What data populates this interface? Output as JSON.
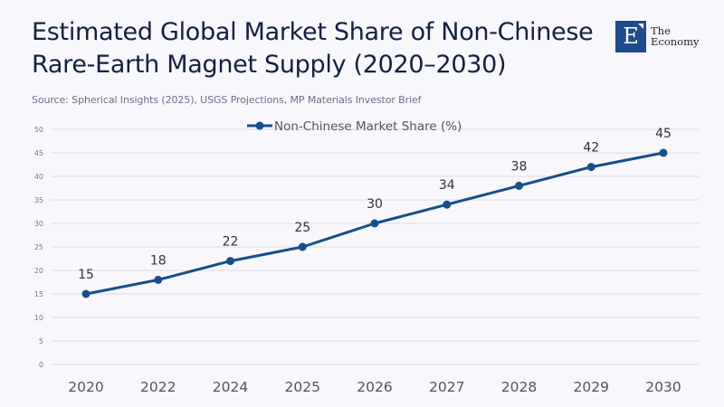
{
  "header": {
    "title_line1": "Estimated Global Market Share of Non-Chinese",
    "title_line2": "Rare-Earth Magnet Supply (2020–2030)",
    "subtitle": "Source: Spherical Insights (2025), USGS Projections, MP Materials Investor Brief"
  },
  "logo": {
    "icon": "E",
    "line1": "The",
    "line2": "Economy",
    "color": "#1d4b8c"
  },
  "chart_data": {
    "type": "line",
    "title": "Estimated Global Market Share of Non-Chinese Rare-Earth Magnet Supply (2020–2030)",
    "subtitle": "Source: Spherical Insights (2025), USGS Projections, MP Materials Investor Brief",
    "categories": [
      "2020",
      "2022",
      "2024",
      "2025",
      "2026",
      "2027",
      "2028",
      "2029",
      "2030"
    ],
    "series": [
      {
        "name": "Non-Chinese Market Share (%)",
        "values": [
          15,
          18,
          22,
          25,
          30,
          34,
          38,
          42,
          45
        ],
        "color": "#174f8a"
      }
    ],
    "xlabel": "",
    "ylabel": "",
    "ylim": [
      0,
      50
    ],
    "yticks": [
      0,
      5,
      10,
      15,
      20,
      25,
      30,
      35,
      40,
      45,
      50
    ],
    "grid": true,
    "legend": "top-center",
    "data_labels": true
  }
}
